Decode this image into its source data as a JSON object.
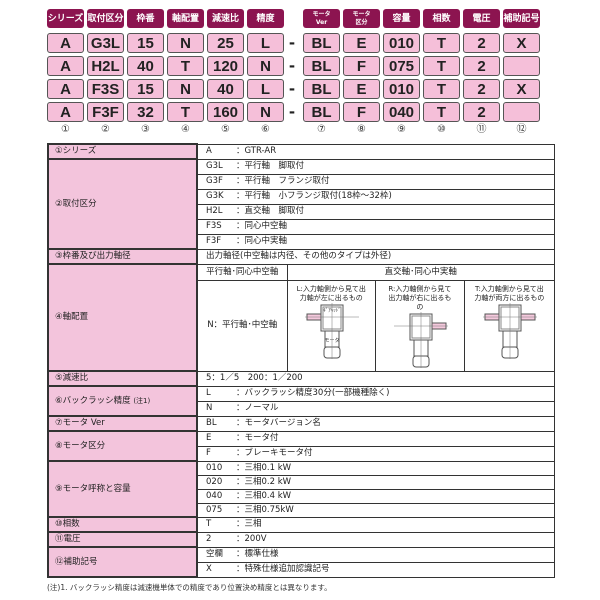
{
  "code_headers": [
    "シリーズ",
    "取付区分",
    "枠番",
    "軸配置",
    "減速比",
    "精度",
    "モータ\nVer",
    "モータ\n区分",
    "容量",
    "相数",
    "電圧",
    "補助記号"
  ],
  "code_rows": [
    [
      "A",
      "G3L",
      "15",
      "N",
      "25",
      "L",
      "BL",
      "E",
      "010",
      "T",
      "2",
      "X"
    ],
    [
      "A",
      "H2L",
      "40",
      "T",
      "120",
      "N",
      "BL",
      "F",
      "075",
      "T",
      "2",
      ""
    ],
    [
      "A",
      "F3S",
      "15",
      "N",
      "40",
      "L",
      "BL",
      "E",
      "010",
      "T",
      "2",
      "X"
    ],
    [
      "A",
      "F3F",
      "32",
      "T",
      "160",
      "N",
      "BL",
      "F",
      "040",
      "T",
      "2",
      ""
    ]
  ],
  "separator": "-",
  "position_numbers": [
    "①",
    "②",
    "③",
    "④",
    "⑤",
    "⑥",
    "⑦",
    "⑧",
    "⑨",
    "⑩",
    "⑪",
    "⑫"
  ],
  "spec": {
    "series": {
      "label": "①シリーズ",
      "rows": [
        [
          "A",
          "：GTR-AR"
        ]
      ]
    },
    "mounting": {
      "label": "②取付区分",
      "rows": [
        [
          "G3L",
          "：平行軸　脚取付"
        ],
        [
          "G3F",
          "：平行軸　フランジ取付"
        ],
        [
          "G3K",
          "：平行軸　小フランジ取付(18枠～32枠)"
        ],
        [
          "H2L",
          "：直交軸　脚取付"
        ],
        [
          "F3S",
          "：同心中空軸"
        ],
        [
          "F3F",
          "：同心中実軸"
        ]
      ]
    },
    "frame": {
      "label": "③枠番及び出力軸径",
      "text": "出力軸径(中空軸は内径、その他のタイプは外径)"
    },
    "shaft": {
      "label": "④軸配置",
      "col1_header": "平行軸･同心中空軸",
      "col2_header": "直交軸･同心中実軸",
      "n_text": "N：平行軸･中空軸",
      "L": "L:入力軸側から見て出力軸が左に出るもの",
      "R": "R:入力軸側から見て出力軸が右に出るもの",
      "T": "T:入力軸側から見て出力軸が両方に出るもの",
      "diagram_labels": [
        "ｷﾞｱﾍｯﾄﾞ",
        "モータ"
      ]
    },
    "ratio": {
      "label": "⑤減速比",
      "text": "5：1／5　200：1／200"
    },
    "backlash": {
      "label": "⑥バックラッシ精度",
      "note_ref": "(注1)",
      "rows": [
        [
          "L",
          "：バックラッシ精度30分(一部機種除く)"
        ],
        [
          "N",
          "：ノーマル"
        ]
      ]
    },
    "motor_ver": {
      "label": "⑦モータ Ver",
      "rows": [
        [
          "BL",
          "：モータバージョン名"
        ]
      ]
    },
    "motor_type": {
      "label": "⑧モータ区分",
      "rows": [
        [
          "E",
          "：モータ付"
        ],
        [
          "F",
          "：ブレーキモータ付"
        ]
      ]
    },
    "capacity": {
      "label": "⑨モータ呼称と容量",
      "rows": [
        [
          "010",
          "：三相0.1 kW"
        ],
        [
          "020",
          "：三相0.2 kW"
        ],
        [
          "040",
          "：三相0.4 kW"
        ],
        [
          "075",
          "：三相0.75kW"
        ]
      ]
    },
    "phase": {
      "label": "⑩相数",
      "rows": [
        [
          "T",
          "：三相"
        ]
      ]
    },
    "voltage": {
      "label": "⑪電圧",
      "rows": [
        [
          "2",
          "：200V"
        ]
      ]
    },
    "aux": {
      "label": "⑫補助記号",
      "rows": [
        [
          "空欄",
          "：標準仕様"
        ],
        [
          "X",
          "：特殊仕様追加認識記号"
        ]
      ]
    }
  },
  "footnote": "(注)1. バックラッシ精度は減速機単体での精度であり位置決め精度とは異なります。",
  "colors": {
    "header": "#8c1450",
    "cell": "#f5bfd9",
    "label_bg": "#f3c4dc"
  }
}
